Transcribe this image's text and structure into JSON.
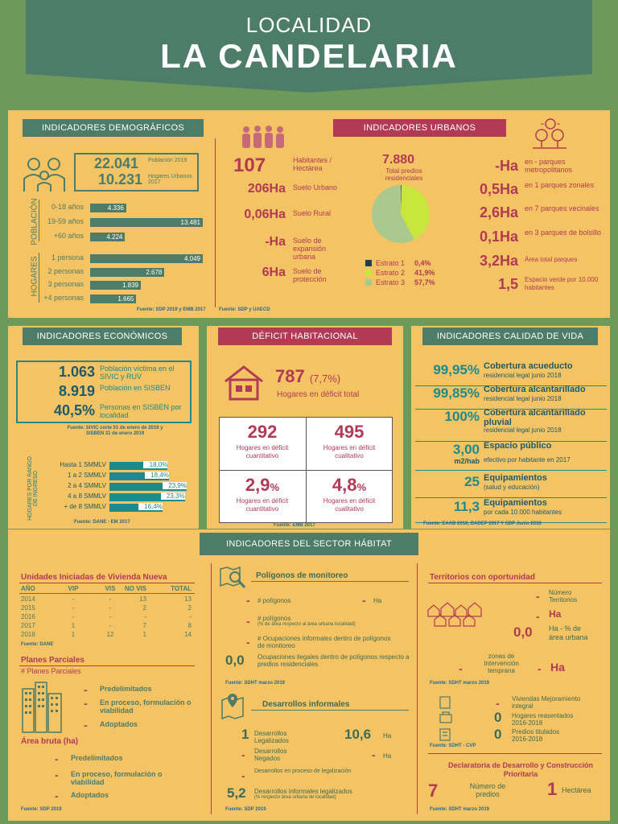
{
  "title": {
    "line1": "LOCALIDAD",
    "line2": "LA CANDELARIA"
  },
  "demograficos": {
    "header": "INDICADORES DEMOGRÁFICOS",
    "pop_value": "22.041",
    "pop_label": "Población 2019",
    "hog_value": "10.231",
    "hog_label": "Hogares Urbanos 2017",
    "poblacion_axis": "POBLACIÓN",
    "hogares_axis": "HOGARES",
    "pop_rows": [
      {
        "label": "0-18 años",
        "value": "4.336",
        "pct": 0.32
      },
      {
        "label": "19-59 años",
        "value": "13.481",
        "pct": 1.0
      },
      {
        "label": "+60 años",
        "value": "4.224",
        "pct": 0.31
      }
    ],
    "hog_rows": [
      {
        "label": "1 persona",
        "value": "4.049",
        "pct": 1.0
      },
      {
        "label": "2 personas",
        "value": "2.678",
        "pct": 0.66
      },
      {
        "label": "3 personas",
        "value": "1.839",
        "pct": 0.45
      },
      {
        "label": "+4 personas",
        "value": "1.665",
        "pct": 0.41
      }
    ],
    "source": "Fuente: SDP 2019 y EMB 2017"
  },
  "urbanos": {
    "header": "INDICADORES URBANOS",
    "left": [
      {
        "value": "107",
        "label": "Habitantes / Hectárea"
      },
      {
        "value": "206Ha",
        "label": "Suelo Urbano"
      },
      {
        "value": "0,06Ha",
        "label": "Suelo Rural"
      },
      {
        "value": "-Ha",
        "label": "Suelo de expansión urbana"
      },
      {
        "value": "6Ha",
        "label": "Suelo de protección"
      }
    ],
    "predios_value": "7.880",
    "predios_label": "Total predios residenciales",
    "estratos": [
      {
        "label": "Estrato 1",
        "value": "0,4%",
        "color": "#1f3d4f",
        "pct": 0.4
      },
      {
        "label": "Estrato 2",
        "value": "41,9%",
        "color": "#c8e63c",
        "pct": 41.9
      },
      {
        "label": "Estrato 3",
        "value": "57,7%",
        "color": "#a9c98f",
        "pct": 57.7
      }
    ],
    "right": [
      {
        "value": "-Ha",
        "label": "en - parques metropolitanos"
      },
      {
        "value": "0,5Ha",
        "label": "en 1 parques zonales"
      },
      {
        "value": "2,6Ha",
        "label": "en 7 parques vecinales"
      },
      {
        "value": "0,1Ha",
        "label": "en 3 parques de bolsillo"
      },
      {
        "value": "3,2Ha",
        "label": "Área total parques"
      },
      {
        "value": "1,5",
        "label": "Espacio verde por 10.000 habitantes"
      }
    ],
    "source": "Fuente: SDP y UAECD"
  },
  "economicos": {
    "header": "INDICADORES ECONÓMICOS",
    "rows": [
      {
        "value": "1.063",
        "label": "Población víctima en el SIVIC y RUV"
      },
      {
        "value": "8.919",
        "label": "Población en SISBEN"
      },
      {
        "value": "40,5%",
        "label": "Personas en SISBEN por localidad"
      }
    ],
    "source1": "Fuente: SIVIC corte 01 de enero de 2019 y SISBEN 31 de enero 2019",
    "axis": "HOGARES POR RANGO DE INGRESO",
    "ingreso": [
      {
        "label": "Hasta 1 SMMLV",
        "value": "18,0%",
        "pct": 18.0
      },
      {
        "label": "1 a 2 SMMLV",
        "value": "18,4%",
        "pct": 18.4
      },
      {
        "label": "2 a 4 SMMLV",
        "value": "23,9%",
        "pct": 23.9
      },
      {
        "label": "4 a 8 SMMLV",
        "value": "23,3%",
        "pct": 23.3
      },
      {
        "label": "+ de 8 SMMLV",
        "value": "16,4%",
        "pct": 16.4
      }
    ],
    "source2": "Fuente: DANE - EM 2017"
  },
  "deficit": {
    "header": "DÉFICIT HABITACIONAL",
    "total": "787",
    "total_pct": "(7,7%)",
    "total_label": "Hogares en déficit total",
    "cells": [
      {
        "value": "292",
        "unit": "",
        "label": "Hogares en déficit cuantitativo"
      },
      {
        "value": "495",
        "unit": "",
        "label": "Hogares en déficit cualitativo"
      },
      {
        "value": "2,9",
        "unit": "%",
        "label": "Hogares en déficit cuantitativo"
      },
      {
        "value": "4,8",
        "unit": "%",
        "label": "Hogares en déficit cualitativo"
      }
    ],
    "source": "Fuente: EMB 2017"
  },
  "calidad": {
    "header": "INDICADORES CALIDAD DE VIDA",
    "rows": [
      {
        "value": "99,95%",
        "title": "Cobertura acueducto",
        "sub": "residencial legal junio 2018"
      },
      {
        "value": "99,85%",
        "title": "Cobertura alcantarillado",
        "sub": "residencial legal junio 2018"
      },
      {
        "value": "100%",
        "title": "Cobertura alcantarillado pluvial",
        "sub": "residencial legal junio 2018"
      },
      {
        "value": "3,00",
        "unit": "m2/hab",
        "title": "Espacio público",
        "sub": "efectivo por habitante en 2017"
      },
      {
        "value": "25",
        "title": "Equipamientos",
        "sub": "(salud y educación)"
      },
      {
        "value": "11,3",
        "title": "Equipamientos",
        "sub": "por cada 10.000 habitantes"
      }
    ],
    "source": "Fuente: EAAB 2018, DADEP 2017 Y SDP Junio 2018"
  },
  "habitat": {
    "header": "INDICADORES DEL SECTOR HÁBITAT",
    "vivienda": {
      "title": "Unidades Iniciadas de Vivienda Nueva",
      "cols": [
        "AÑO",
        "VIP",
        "VIS",
        "NO VIS",
        "TOTAL"
      ],
      "rows": [
        [
          "2014",
          "-",
          "-",
          "13",
          "13"
        ],
        [
          "2015",
          "-",
          "-",
          "2",
          "2"
        ],
        [
          "2016",
          "-",
          "-",
          "-",
          "-"
        ],
        [
          "2017",
          "1",
          "-",
          "7",
          "8"
        ],
        [
          "2018",
          "1",
          "12",
          "1",
          "14"
        ]
      ],
      "source": "Fuente: DANE"
    },
    "planes": {
      "title": "Planes Parciales",
      "sub": "# Planes Parciales",
      "items": [
        "Predelimitados",
        "En proceso, formulación o viabilidad",
        "Adoptados"
      ],
      "area_title": "Área bruta",
      "area_unit": "(ha)",
      "area_items": [
        "Predelimitados",
        "En proceso, formulación o viabilidad",
        "Adoptados"
      ],
      "source": "Fuente: SDP 2019"
    },
    "poligonos": {
      "title": "Polígonos de monitoreo",
      "r1a": "# polígonos",
      "r1b": "Ha",
      "r2": "# polígonos",
      "r2s": "(% de área respecto al área urbana localidad)",
      "r3": "# Ocupaciones informales dentro de polígonos de monitoreo",
      "r4v": "0,0",
      "r4": "Ocupaciones ilegales dentro de polígonos respecto a predios residenciales",
      "source": "Fuente: SDHT marzo 2019"
    },
    "desarrollos": {
      "title": "Desarrollos informales",
      "r1v": "1",
      "r1": "Desarrollos Legalizados",
      "r1hv": "10,6",
      "r1hu": "Ha",
      "r2": "Desarrollos Negados",
      "r2hu": "Ha",
      "r3": "Desarrollos en proceso de legalización",
      "r4v": "5,2",
      "r4": "Desarrollos informales legalizados",
      "r4s": "(% respecto área urbana de localidad)",
      "source": "Fuente: SDP 2019"
    },
    "territorios": {
      "title": "Territorios con oportunidad",
      "r1": "Número Territorios",
      "r2": "Ha",
      "r3v": "0,0",
      "r3": "Ha - % de área urbana",
      "r4": "zonas de Intervención temprana",
      "r4u": "Ha",
      "source": "Fuente: SDHT marzo 2019"
    },
    "mejoramiento": {
      "r1": "Viviendas Mejoramiento integral",
      "r2v": "0",
      "r2": "Hogares reasentados 2016-2018",
      "r3v": "0",
      "r3": "Predios titulados 2016-2018",
      "source": "Fuente: SDHT - CVP"
    },
    "declaratoria": {
      "title": "Declaratoria de Desarrollo y Construcción Prioritaria",
      "v1": "7",
      "l1": "Número de predios",
      "v2": "1",
      "l2": "Hectárea",
      "source": "Fuente: SDHT marzo 2019"
    }
  },
  "dash": "-"
}
